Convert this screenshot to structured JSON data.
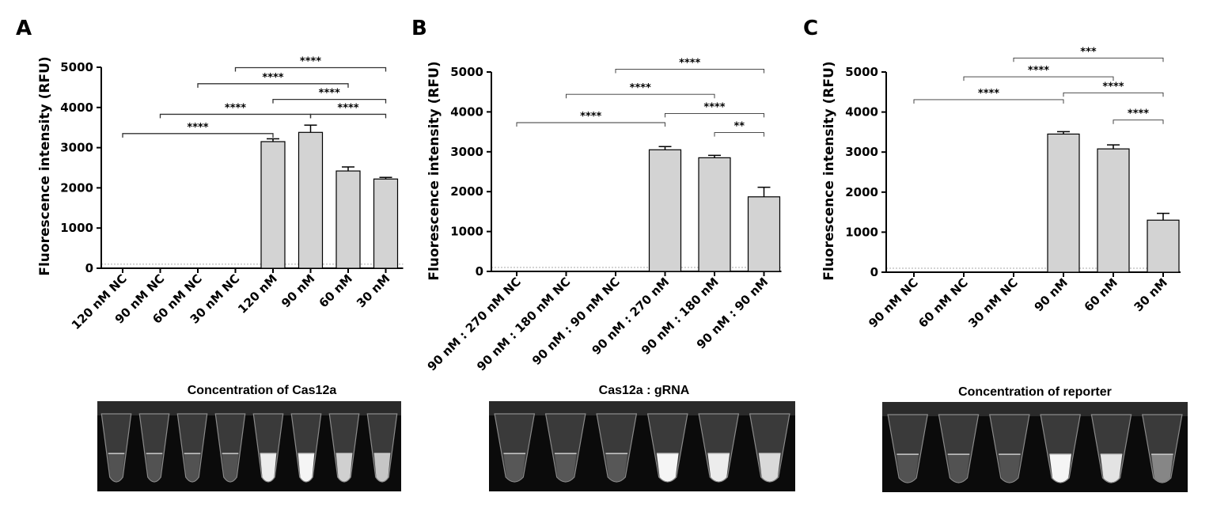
{
  "panels": [
    {
      "letter": "A",
      "photo_title": "Concentration of Cas12a",
      "photo_tubes": [
        0.12,
        0.12,
        0.12,
        0.12,
        0.95,
        1.0,
        0.8,
        0.75
      ]
    },
    {
      "letter": "B",
      "photo_title": "Cas12a : gRNA",
      "photo_tubes": [
        0.15,
        0.15,
        0.15,
        1.0,
        0.95,
        0.85
      ]
    },
    {
      "letter": "C",
      "photo_title": "Concentration of reporter",
      "photo_tubes": [
        0.12,
        0.12,
        0.12,
        1.0,
        0.9,
        0.4
      ]
    }
  ],
  "chart_data": [
    {
      "type": "bar",
      "ylabel": "Fluorescence intensity (RFU)",
      "ylim": [
        0,
        5000
      ],
      "yticks": [
        0,
        1000,
        2000,
        3000,
        4000,
        5000
      ],
      "categories": [
        "120 nM NC",
        "90 nM NC",
        "60 nM NC",
        "30 nM NC",
        "120 nM",
        "90 nM",
        "60 nM",
        "30 nM"
      ],
      "values": [
        0,
        0,
        0,
        0,
        3150,
        3380,
        2420,
        2220
      ],
      "errors": [
        0,
        0,
        0,
        0,
        70,
        180,
        100,
        40
      ],
      "baseline": 100,
      "significance": [
        {
          "from": 0,
          "to": 4,
          "y": 3350,
          "label": "****"
        },
        {
          "from": 1,
          "to": 5,
          "y": 3830,
          "label": "****"
        },
        {
          "from": 2,
          "to": 6,
          "y": 4590,
          "label": "****"
        },
        {
          "from": 3,
          "to": 7,
          "y": 4990,
          "label": "****"
        },
        {
          "from": 4,
          "to": 7,
          "y": 4200,
          "label": "****"
        },
        {
          "from": 5,
          "to": 7,
          "y": 3830,
          "label": "****"
        }
      ]
    },
    {
      "type": "bar",
      "ylabel": "Fluorescence intensity (RFU)",
      "ylim": [
        0,
        5000
      ],
      "yticks": [
        0,
        1000,
        2000,
        3000,
        4000,
        5000
      ],
      "categories": [
        "90 nM : 270 nM NC",
        "90 nM : 180 nM NC",
        "90 nM : 90 nM NC",
        "90 nM : 270 nM",
        "90 nM : 180 nM",
        "90 nM : 90 nM"
      ],
      "values": [
        0,
        0,
        0,
        3050,
        2850,
        1870
      ],
      "errors": [
        0,
        0,
        0,
        80,
        60,
        240
      ],
      "baseline": 100,
      "significance": [
        {
          "from": 0,
          "to": 3,
          "y": 3730,
          "label": "****"
        },
        {
          "from": 1,
          "to": 4,
          "y": 4440,
          "label": "****"
        },
        {
          "from": 2,
          "to": 5,
          "y": 5070,
          "label": "****"
        },
        {
          "from": 3,
          "to": 5,
          "y": 3960,
          "label": "****"
        },
        {
          "from": 4,
          "to": 5,
          "y": 3480,
          "label": "**"
        }
      ]
    },
    {
      "type": "bar",
      "ylabel": "Fluorescence intensity (RFU)",
      "ylim": [
        0,
        5000
      ],
      "yticks": [
        0,
        1000,
        2000,
        3000,
        4000,
        5000
      ],
      "categories": [
        "90 nM NC",
        "60 nM NC",
        "30 nM NC",
        "90 nM",
        "60 nM",
        "30 nM"
      ],
      "values": [
        0,
        0,
        0,
        3450,
        3080,
        1300
      ],
      "errors": [
        0,
        0,
        0,
        60,
        100,
        170
      ],
      "baseline": 100,
      "significance": [
        {
          "from": 0,
          "to": 3,
          "y": 4310,
          "label": "****"
        },
        {
          "from": 1,
          "to": 4,
          "y": 4880,
          "label": "****"
        },
        {
          "from": 2,
          "to": 5,
          "y": 5350,
          "label": "***"
        },
        {
          "from": 3,
          "to": 5,
          "y": 4480,
          "label": "****"
        },
        {
          "from": 4,
          "to": 5,
          "y": 3800,
          "label": "****"
        }
      ]
    }
  ]
}
